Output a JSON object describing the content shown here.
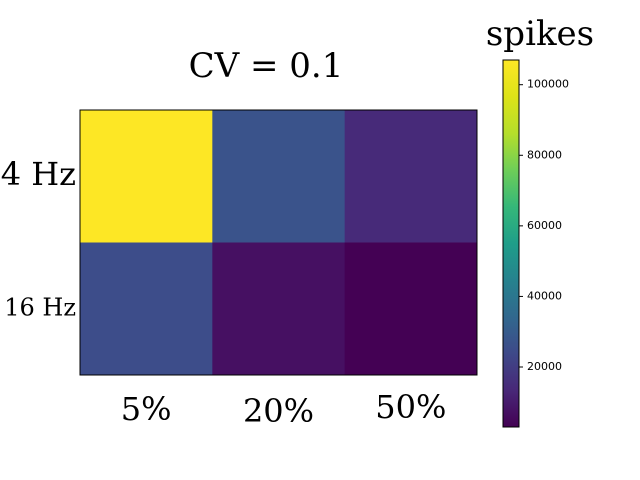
{
  "chart_data": {
    "type": "heatmap",
    "title": "CV = 0.1",
    "rows": [
      "4 Hz",
      "16 Hz"
    ],
    "columns": [
      "5%",
      "20%",
      "50%"
    ],
    "values": [
      [
        107000,
        27000,
        14000
      ],
      [
        25000,
        7000,
        3000
      ]
    ],
    "colorscale": "viridis",
    "colorbar": {
      "label": "spikes",
      "range": [
        3000,
        107000
      ],
      "ticks": [
        20000,
        40000,
        60000,
        80000,
        100000
      ],
      "tick_labels": [
        "20000",
        "40000",
        "60000",
        "80000",
        "100000"
      ]
    },
    "grid": false
  }
}
